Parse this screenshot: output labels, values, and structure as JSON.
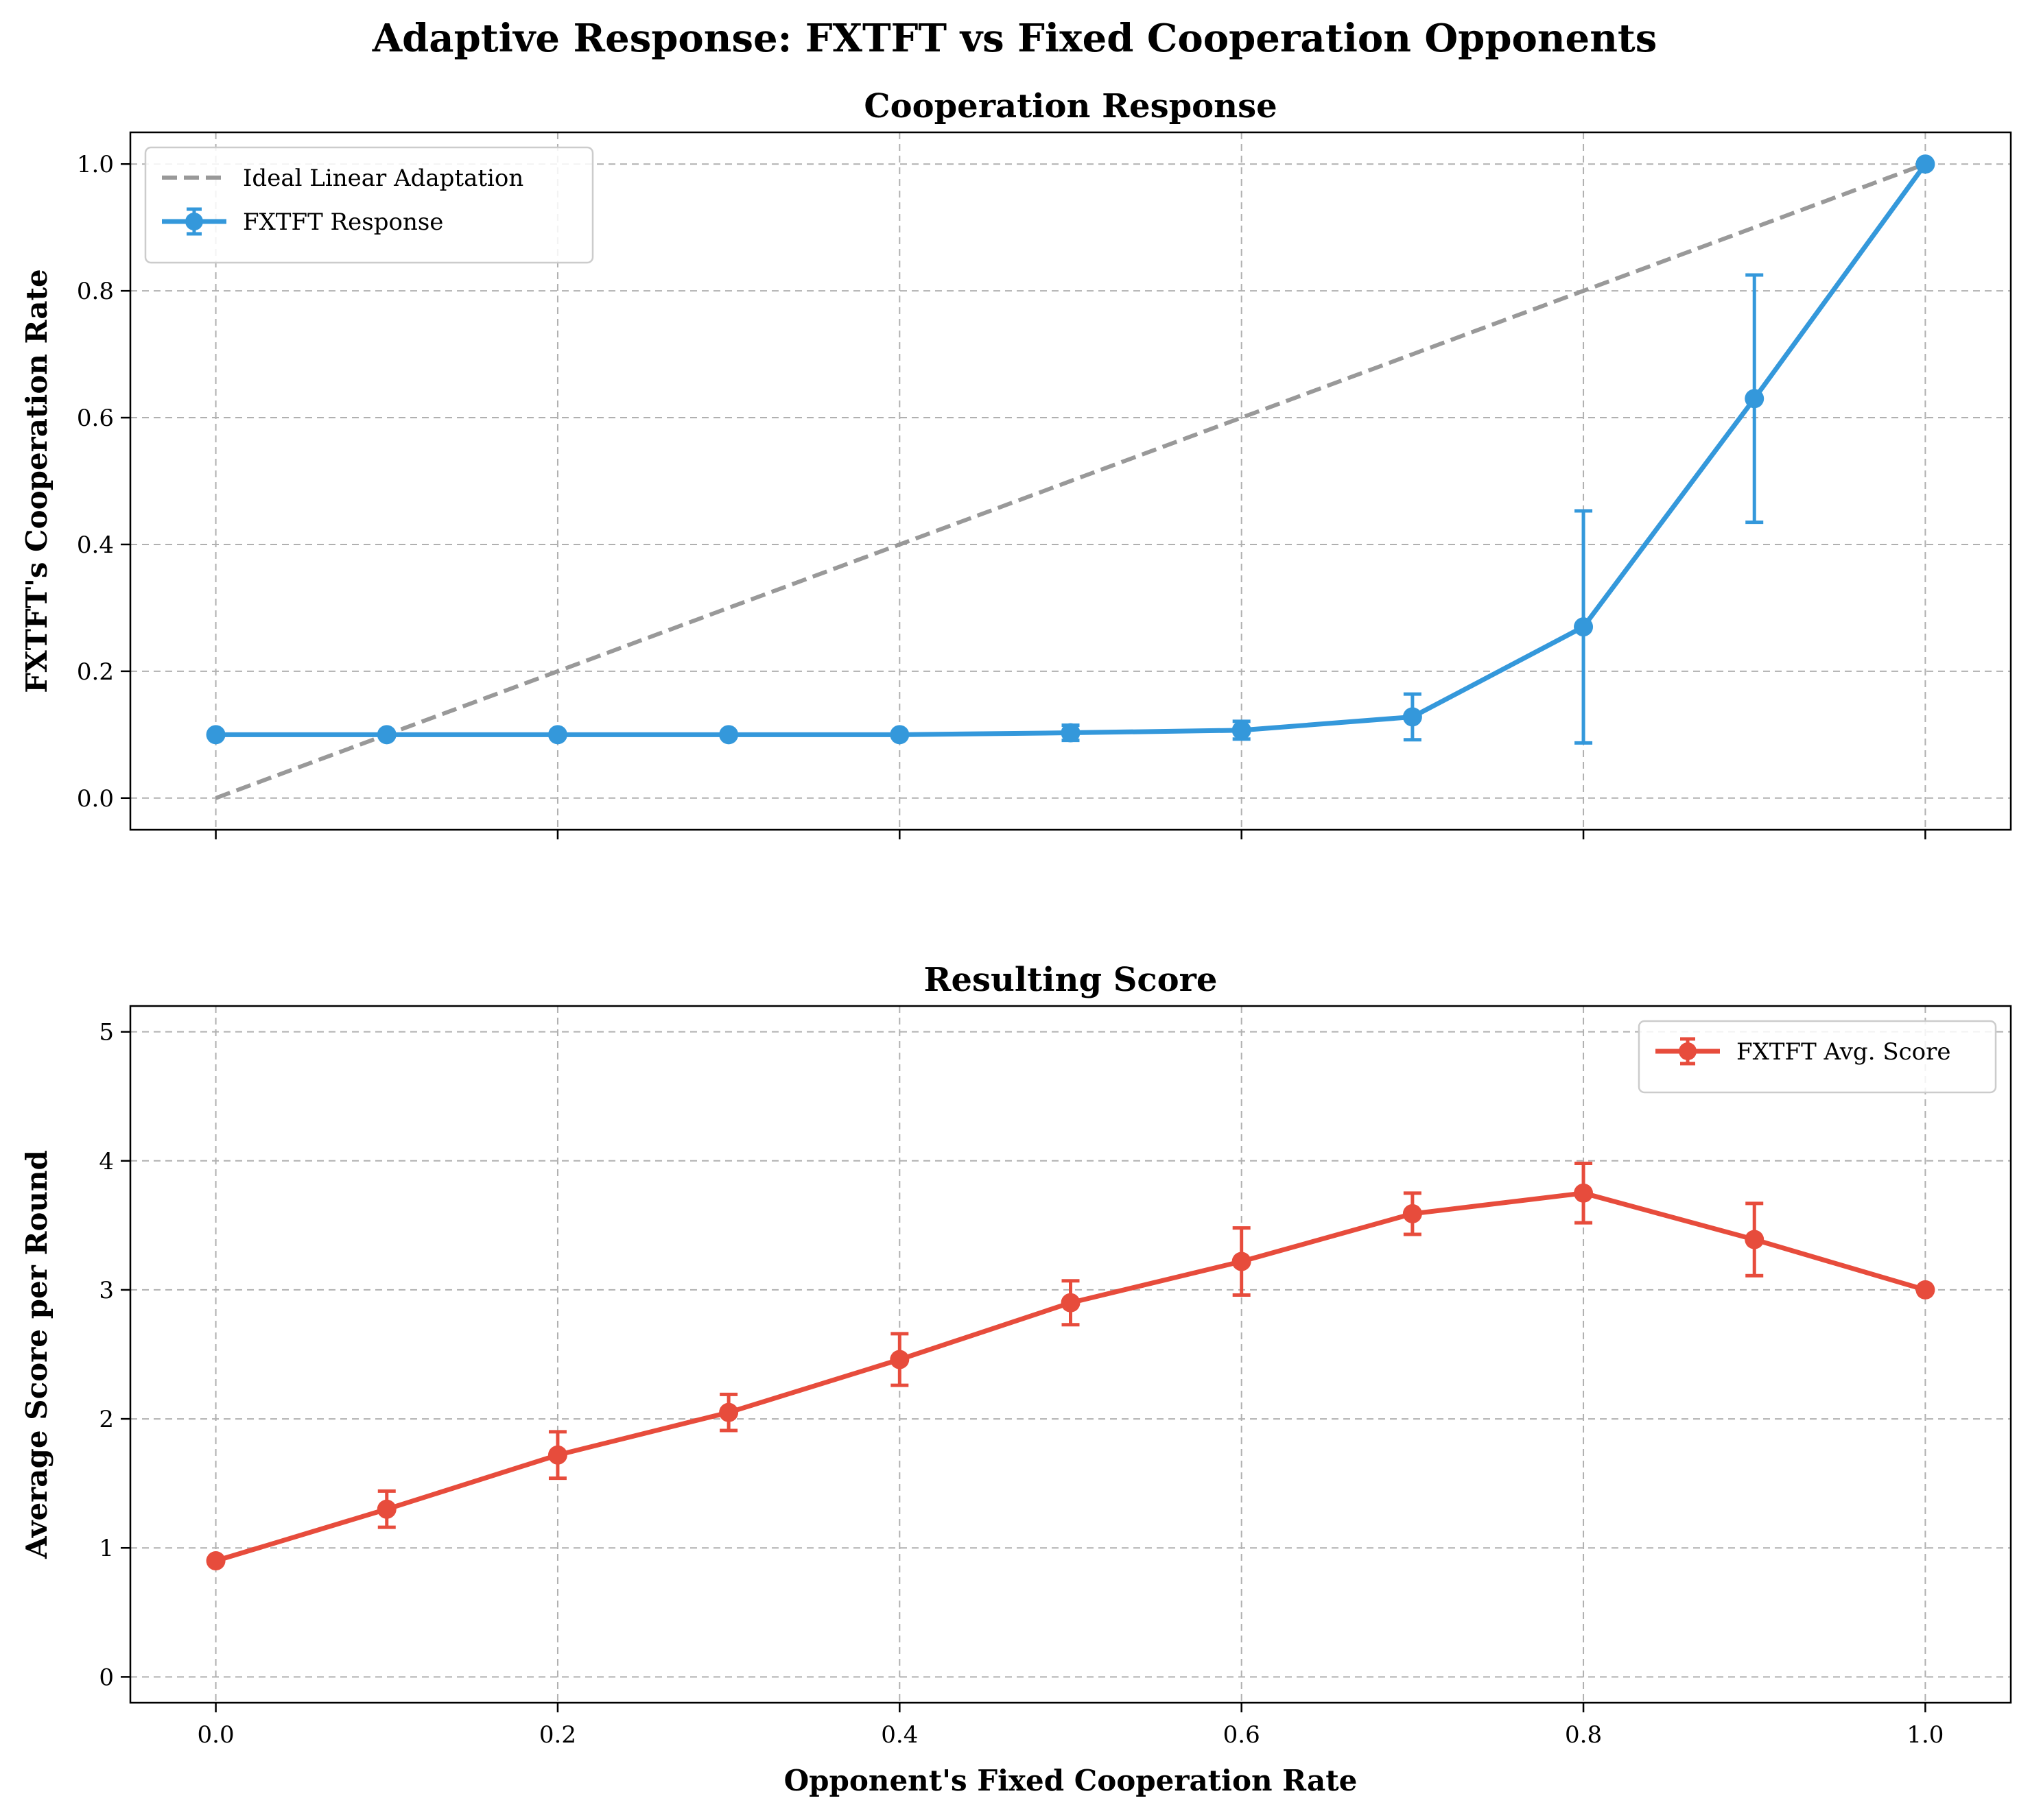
{
  "figure": {
    "title": "Adaptive Response: FXTFT vs Fixed Cooperation Opponents"
  },
  "chart_data": [
    {
      "type": "line",
      "title": "Cooperation Response",
      "xlabel": "",
      "ylabel": "FXTFT's Cooperation Rate",
      "xlim": [
        -0.05,
        1.05
      ],
      "ylim": [
        -0.05,
        1.05
      ],
      "x_ticks": [
        "0.0",
        "0.2",
        "0.4",
        "0.6",
        "0.8",
        "1.0"
      ],
      "y_ticks": [
        "0.0",
        "0.2",
        "0.4",
        "0.6",
        "0.8",
        "1.0"
      ],
      "grid": true,
      "legend_position": "upper-left",
      "x": [
        0.0,
        0.1,
        0.2,
        0.3,
        0.4,
        0.5,
        0.6,
        0.7,
        0.8,
        0.9,
        1.0
      ],
      "series": [
        {
          "name": "Ideal Linear Adaptation",
          "style": "dashed",
          "color": "#999999",
          "x": [
            0.0,
            1.0
          ],
          "values": [
            0.0,
            1.0
          ]
        },
        {
          "name": "FXTFT Response",
          "style": "solid-markers-errorbars",
          "color": "#3498db",
          "values": [
            0.1,
            0.1,
            0.1,
            0.1,
            0.1,
            0.103,
            0.107,
            0.128,
            0.27,
            0.63,
            1.0
          ],
          "errors": [
            0.0,
            0.0,
            0.0,
            0.0,
            0.0,
            0.012,
            0.014,
            0.036,
            0.183,
            0.195,
            0.0
          ]
        }
      ]
    },
    {
      "type": "line",
      "title": "Resulting Score",
      "xlabel": "Opponent's Fixed Cooperation Rate",
      "ylabel": "Average Score per Round",
      "xlim": [
        -0.05,
        1.05
      ],
      "ylim": [
        -0.2,
        5.2
      ],
      "x_ticks": [
        "0.0",
        "0.2",
        "0.4",
        "0.6",
        "0.8",
        "1.0"
      ],
      "y_ticks": [
        "0",
        "1",
        "2",
        "3",
        "4",
        "5"
      ],
      "grid": true,
      "legend_position": "upper-right",
      "x": [
        0.0,
        0.1,
        0.2,
        0.3,
        0.4,
        0.5,
        0.6,
        0.7,
        0.8,
        0.9,
        1.0
      ],
      "series": [
        {
          "name": "FXTFT Avg. Score",
          "style": "solid-markers-errorbars",
          "color": "#e74c3c",
          "values": [
            0.9,
            1.3,
            1.72,
            2.05,
            2.46,
            2.9,
            3.22,
            3.59,
            3.75,
            3.39,
            3.0
          ],
          "errors": [
            0.0,
            0.14,
            0.18,
            0.14,
            0.2,
            0.17,
            0.26,
            0.16,
            0.23,
            0.28,
            0.0
          ]
        }
      ]
    }
  ]
}
